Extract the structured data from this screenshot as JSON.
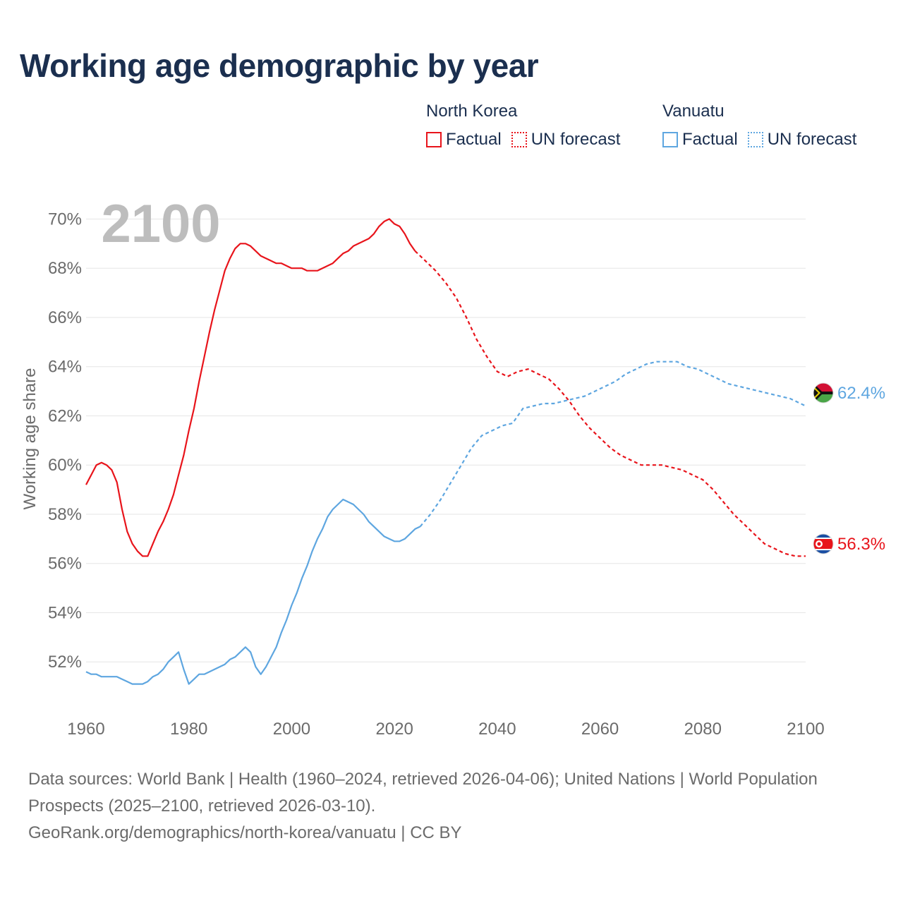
{
  "title": "Working age demographic by year",
  "legend": {
    "groups": [
      {
        "name": "North Korea",
        "factual_label": "Factual",
        "forecast_label": "UN forecast",
        "color": "#e8141b"
      },
      {
        "name": "Vanuatu",
        "factual_label": "Factual",
        "forecast_label": "UN forecast",
        "color": "#5ea6e0"
      }
    ]
  },
  "chart_data": {
    "type": "line",
    "year_label": "2100",
    "ylabel": "Working age share",
    "xlim": [
      1960,
      2100
    ],
    "ylim": [
      50,
      70.5
    ],
    "yticks": [
      {
        "value": 52,
        "label": "52%"
      },
      {
        "value": 54,
        "label": "54%"
      },
      {
        "value": 56,
        "label": "56%"
      },
      {
        "value": 58,
        "label": "58%"
      },
      {
        "value": 60,
        "label": "60%"
      },
      {
        "value": 62,
        "label": "62%"
      },
      {
        "value": 64,
        "label": "64%"
      },
      {
        "value": 66,
        "label": "66%"
      },
      {
        "value": 68,
        "label": "68%"
      },
      {
        "value": 70,
        "label": "70%"
      }
    ],
    "xticks": [
      {
        "value": 1960,
        "label": "1960"
      },
      {
        "value": 1980,
        "label": "1980"
      },
      {
        "value": 2000,
        "label": "2000"
      },
      {
        "value": 2020,
        "label": "2020"
      },
      {
        "value": 2040,
        "label": "2040"
      },
      {
        "value": 2060,
        "label": "2060"
      },
      {
        "value": 2080,
        "label": "2080"
      },
      {
        "value": 2100,
        "label": "2100"
      }
    ],
    "series": [
      {
        "name": "North Korea",
        "color": "#e8141b",
        "end_label": "56.3%",
        "factual": [
          [
            1960,
            59.2
          ],
          [
            1961,
            59.6
          ],
          [
            1962,
            60.0
          ],
          [
            1963,
            60.1
          ],
          [
            1964,
            60.0
          ],
          [
            1965,
            59.8
          ],
          [
            1966,
            59.3
          ],
          [
            1967,
            58.2
          ],
          [
            1968,
            57.3
          ],
          [
            1969,
            56.8
          ],
          [
            1970,
            56.5
          ],
          [
            1971,
            56.3
          ],
          [
            1972,
            56.3
          ],
          [
            1973,
            56.8
          ],
          [
            1974,
            57.3
          ],
          [
            1975,
            57.7
          ],
          [
            1976,
            58.2
          ],
          [
            1977,
            58.8
          ],
          [
            1978,
            59.6
          ],
          [
            1979,
            60.4
          ],
          [
            1980,
            61.4
          ],
          [
            1981,
            62.3
          ],
          [
            1982,
            63.4
          ],
          [
            1983,
            64.4
          ],
          [
            1984,
            65.4
          ],
          [
            1985,
            66.3
          ],
          [
            1986,
            67.1
          ],
          [
            1987,
            67.9
          ],
          [
            1988,
            68.4
          ],
          [
            1989,
            68.8
          ],
          [
            1990,
            69.0
          ],
          [
            1991,
            69.0
          ],
          [
            1992,
            68.9
          ],
          [
            1993,
            68.7
          ],
          [
            1994,
            68.5
          ],
          [
            1995,
            68.4
          ],
          [
            1996,
            68.3
          ],
          [
            1997,
            68.2
          ],
          [
            1998,
            68.2
          ],
          [
            1999,
            68.1
          ],
          [
            2000,
            68.0
          ],
          [
            2001,
            68.0
          ],
          [
            2002,
            68.0
          ],
          [
            2003,
            67.9
          ],
          [
            2004,
            67.9
          ],
          [
            2005,
            67.9
          ],
          [
            2006,
            68.0
          ],
          [
            2007,
            68.1
          ],
          [
            2008,
            68.2
          ],
          [
            2009,
            68.4
          ],
          [
            2010,
            68.6
          ],
          [
            2011,
            68.7
          ],
          [
            2012,
            68.9
          ],
          [
            2013,
            69.0
          ],
          [
            2014,
            69.1
          ],
          [
            2015,
            69.2
          ],
          [
            2016,
            69.4
          ],
          [
            2017,
            69.7
          ],
          [
            2018,
            69.9
          ],
          [
            2019,
            70.0
          ],
          [
            2020,
            69.8
          ],
          [
            2021,
            69.7
          ],
          [
            2022,
            69.4
          ],
          [
            2023,
            69.0
          ],
          [
            2024,
            68.7
          ]
        ],
        "forecast": [
          [
            2024,
            68.7
          ],
          [
            2026,
            68.3
          ],
          [
            2028,
            67.9
          ],
          [
            2030,
            67.4
          ],
          [
            2032,
            66.8
          ],
          [
            2034,
            66.0
          ],
          [
            2036,
            65.1
          ],
          [
            2038,
            64.4
          ],
          [
            2040,
            63.8
          ],
          [
            2042,
            63.6
          ],
          [
            2044,
            63.8
          ],
          [
            2046,
            63.9
          ],
          [
            2048,
            63.7
          ],
          [
            2050,
            63.5
          ],
          [
            2052,
            63.1
          ],
          [
            2054,
            62.6
          ],
          [
            2056,
            62.0
          ],
          [
            2058,
            61.5
          ],
          [
            2060,
            61.1
          ],
          [
            2062,
            60.7
          ],
          [
            2064,
            60.4
          ],
          [
            2066,
            60.2
          ],
          [
            2068,
            60.0
          ],
          [
            2070,
            60.0
          ],
          [
            2072,
            60.0
          ],
          [
            2074,
            59.9
          ],
          [
            2076,
            59.8
          ],
          [
            2078,
            59.6
          ],
          [
            2080,
            59.4
          ],
          [
            2082,
            59.0
          ],
          [
            2084,
            58.5
          ],
          [
            2086,
            58.0
          ],
          [
            2088,
            57.6
          ],
          [
            2090,
            57.2
          ],
          [
            2092,
            56.8
          ],
          [
            2094,
            56.6
          ],
          [
            2096,
            56.4
          ],
          [
            2098,
            56.3
          ],
          [
            2100,
            56.3
          ]
        ]
      },
      {
        "name": "Vanuatu",
        "color": "#5ea6e0",
        "end_label": "62.4%",
        "factual": [
          [
            1960,
            51.6
          ],
          [
            1961,
            51.5
          ],
          [
            1962,
            51.5
          ],
          [
            1963,
            51.4
          ],
          [
            1964,
            51.4
          ],
          [
            1965,
            51.4
          ],
          [
            1966,
            51.4
          ],
          [
            1967,
            51.3
          ],
          [
            1968,
            51.2
          ],
          [
            1969,
            51.1
          ],
          [
            1970,
            51.1
          ],
          [
            1971,
            51.1
          ],
          [
            1972,
            51.2
          ],
          [
            1973,
            51.4
          ],
          [
            1974,
            51.5
          ],
          [
            1975,
            51.7
          ],
          [
            1976,
            52.0
          ],
          [
            1977,
            52.2
          ],
          [
            1978,
            52.4
          ],
          [
            1979,
            51.7
          ],
          [
            1980,
            51.1
          ],
          [
            1981,
            51.3
          ],
          [
            1982,
            51.5
          ],
          [
            1983,
            51.5
          ],
          [
            1984,
            51.6
          ],
          [
            1985,
            51.7
          ],
          [
            1986,
            51.8
          ],
          [
            1987,
            51.9
          ],
          [
            1988,
            52.1
          ],
          [
            1989,
            52.2
          ],
          [
            1990,
            52.4
          ],
          [
            1991,
            52.6
          ],
          [
            1992,
            52.4
          ],
          [
            1993,
            51.8
          ],
          [
            1994,
            51.5
          ],
          [
            1995,
            51.8
          ],
          [
            1996,
            52.2
          ],
          [
            1997,
            52.6
          ],
          [
            1998,
            53.2
          ],
          [
            1999,
            53.7
          ],
          [
            2000,
            54.3
          ],
          [
            2001,
            54.8
          ],
          [
            2002,
            55.4
          ],
          [
            2003,
            55.9
          ],
          [
            2004,
            56.5
          ],
          [
            2005,
            57.0
          ],
          [
            2006,
            57.4
          ],
          [
            2007,
            57.9
          ],
          [
            2008,
            58.2
          ],
          [
            2009,
            58.4
          ],
          [
            2010,
            58.6
          ],
          [
            2011,
            58.5
          ],
          [
            2012,
            58.4
          ],
          [
            2013,
            58.2
          ],
          [
            2014,
            58.0
          ],
          [
            2015,
            57.7
          ],
          [
            2016,
            57.5
          ],
          [
            2017,
            57.3
          ],
          [
            2018,
            57.1
          ],
          [
            2019,
            57.0
          ],
          [
            2020,
            56.9
          ],
          [
            2021,
            56.9
          ],
          [
            2022,
            57.0
          ],
          [
            2023,
            57.2
          ],
          [
            2024,
            57.4
          ],
          [
            2025,
            57.5
          ]
        ],
        "forecast": [
          [
            2025,
            57.5
          ],
          [
            2027,
            58.0
          ],
          [
            2029,
            58.6
          ],
          [
            2031,
            59.3
          ],
          [
            2033,
            60.0
          ],
          [
            2035,
            60.7
          ],
          [
            2037,
            61.2
          ],
          [
            2039,
            61.4
          ],
          [
            2041,
            61.6
          ],
          [
            2043,
            61.7
          ],
          [
            2045,
            62.3
          ],
          [
            2047,
            62.4
          ],
          [
            2049,
            62.5
          ],
          [
            2051,
            62.5
          ],
          [
            2053,
            62.6
          ],
          [
            2055,
            62.7
          ],
          [
            2057,
            62.8
          ],
          [
            2059,
            63.0
          ],
          [
            2061,
            63.2
          ],
          [
            2063,
            63.4
          ],
          [
            2065,
            63.7
          ],
          [
            2067,
            63.9
          ],
          [
            2069,
            64.1
          ],
          [
            2071,
            64.2
          ],
          [
            2073,
            64.2
          ],
          [
            2075,
            64.2
          ],
          [
            2077,
            64.0
          ],
          [
            2079,
            63.9
          ],
          [
            2081,
            63.7
          ],
          [
            2083,
            63.5
          ],
          [
            2085,
            63.3
          ],
          [
            2087,
            63.2
          ],
          [
            2089,
            63.1
          ],
          [
            2091,
            63.0
          ],
          [
            2093,
            62.9
          ],
          [
            2095,
            62.8
          ],
          [
            2097,
            62.7
          ],
          [
            2099,
            62.5
          ],
          [
            2100,
            62.4
          ]
        ]
      }
    ]
  },
  "source": {
    "line1": "Data sources: World Bank | Health (1960–2024, retrieved 2026-04-06); United Nations | World Population Prospects (2025–2100, retrieved 2026-03-10).",
    "line2": "GeoRank.org/demographics/north-korea/vanuatu | CC BY"
  }
}
